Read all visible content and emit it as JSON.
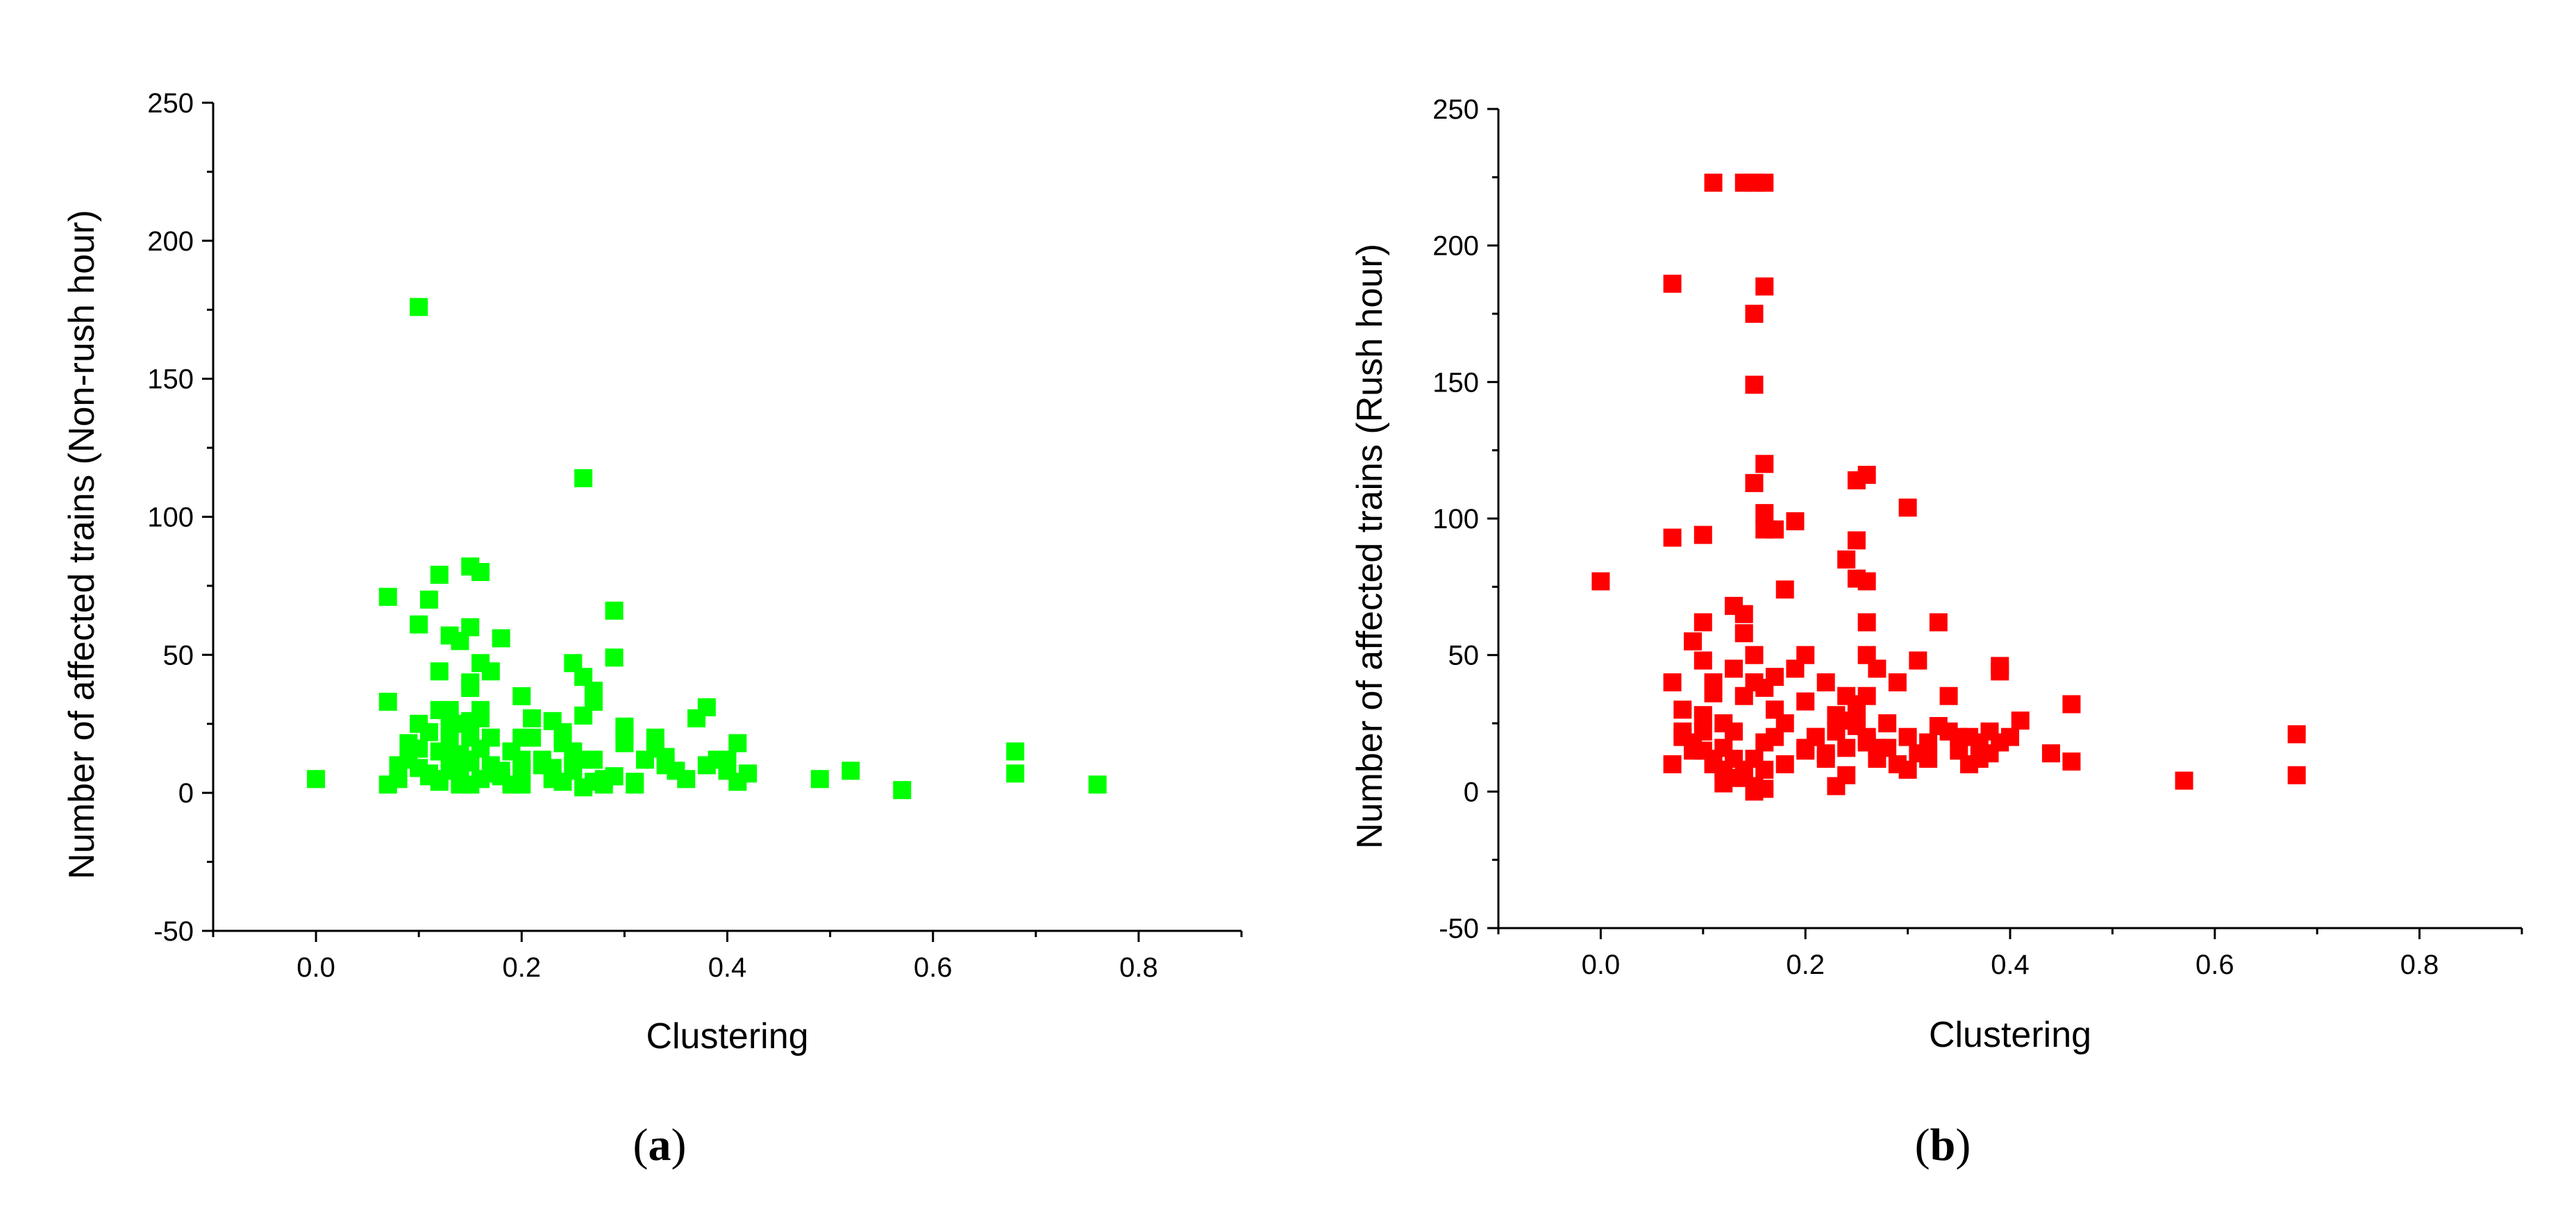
{
  "panels": [
    {
      "label_open": "(",
      "label_letter": "a",
      "label_close": ")"
    },
    {
      "label_open": "(",
      "label_letter": "b",
      "label_close": ")"
    }
  ],
  "chart_data": [
    {
      "type": "scatter",
      "title": "",
      "xlabel": "Clustering",
      "ylabel": "Number of affected trains (Non-rush hour)",
      "xlim": [
        -0.1,
        0.9
      ],
      "ylim": [
        -50,
        250
      ],
      "xticks": [
        0.0,
        0.2,
        0.4,
        0.6,
        0.8
      ],
      "xtick_labels": [
        "0.0",
        "0.2",
        "0.4",
        "0.6",
        "0.8"
      ],
      "yticks": [
        -50,
        0,
        50,
        100,
        150,
        200,
        250
      ],
      "ytick_labels": [
        "-50",
        "0",
        "50",
        "100",
        "150",
        "200",
        "250"
      ],
      "grid": false,
      "marker": "square",
      "color": "#00ff00",
      "series": [
        {
          "x": [
            0.0,
            0.07,
            0.07,
            0.07,
            0.09,
            0.1,
            0.1,
            0.11,
            0.11,
            0.12,
            0.12,
            0.13,
            0.13,
            0.13,
            0.14,
            0.14,
            0.14,
            0.15,
            0.15,
            0.15,
            0.15,
            0.16,
            0.16,
            0.16,
            0.17,
            0.17,
            0.18,
            0.2,
            0.2,
            0.21,
            0.22,
            0.23,
            0.24,
            0.25,
            0.25,
            0.26,
            0.26,
            0.27,
            0.28,
            0.29,
            0.29,
            0.3,
            0.31,
            0.33,
            0.34,
            0.37,
            0.38,
            0.4,
            0.41,
            0.42,
            0.49,
            0.52,
            0.57,
            0.68,
            0.68,
            0.76,
            0.08,
            0.09,
            0.1,
            0.11,
            0.12,
            0.13,
            0.14,
            0.15,
            0.16,
            0.17,
            0.19,
            0.21,
            0.23,
            0.24,
            0.26,
            0.27,
            0.3,
            0.32,
            0.35,
            0.39,
            0.41,
            0.08,
            0.1,
            0.12,
            0.13,
            0.14,
            0.15,
            0.16,
            0.18,
            0.2,
            0.22,
            0.24,
            0.25,
            0.26,
            0.28,
            0.29,
            0.31,
            0.33,
            0.36,
            0.4,
            0.11,
            0.12,
            0.13,
            0.14,
            0.15,
            0.16,
            0.17,
            0.19,
            0.23,
            0.25,
            0.26,
            0.27,
            0.3,
            0.34,
            0.38,
            0.1,
            0.12,
            0.13,
            0.14,
            0.15,
            0.16,
            0.2,
            0.24,
            0.27,
            0.29,
            0.15,
            0.18,
            0.2
          ],
          "y": [
            5,
            71,
            33,
            3,
            18,
            176,
            61,
            70,
            6,
            79,
            44,
            57,
            30,
            12,
            55,
            25,
            8,
            82,
            60,
            38,
            20,
            80,
            47,
            27,
            44,
            10,
            56,
            35,
            20,
            27,
            12,
            26,
            22,
            47,
            15,
            114,
            42,
            37,
            5,
            66,
            49,
            24,
            3,
            20,
            10,
            27,
            31,
            8,
            18,
            7,
            5,
            8,
            1,
            15,
            7,
            3,
            10,
            12,
            25,
            22,
            15,
            23,
            14,
            26,
            30,
            7,
            15,
            20,
            9,
            18,
            28,
            12,
            18,
            12,
            8,
            12,
            4,
            5,
            9,
            4,
            18,
            7,
            3,
            16,
            6,
            8,
            10,
            4,
            8,
            12,
            3,
            6,
            4,
            16,
            5,
            12,
            7,
            5,
            8,
            3,
            11,
            5,
            20,
            3,
            5,
            10,
            2,
            4,
            22,
            13,
            10,
            16,
            30,
            28,
            9,
            40,
            16,
            12,
            21,
            33,
            6,
            12,
            8,
            3
          ]
        }
      ]
    },
    {
      "type": "scatter",
      "title": "",
      "xlabel": "Clustering",
      "ylabel": "Number of affected trains (Rush hour)",
      "xlim": [
        -0.1,
        0.9
      ],
      "ylim": [
        -50,
        250
      ],
      "xticks": [
        0.0,
        0.2,
        0.4,
        0.6,
        0.8
      ],
      "xtick_labels": [
        "0.0",
        "0.2",
        "0.4",
        "0.6",
        "0.8"
      ],
      "yticks": [
        -50,
        0,
        50,
        100,
        150,
        200,
        250
      ],
      "ytick_labels": [
        "-50",
        "0",
        "50",
        "100",
        "150",
        "200",
        "250"
      ],
      "grid": false,
      "marker": "square",
      "color": "#ff0000",
      "series": [
        {
          "x": [
            0.0,
            0.07,
            0.07,
            0.1,
            0.11,
            0.14,
            0.15,
            0.16,
            0.15,
            0.16,
            0.15,
            0.15,
            0.16,
            0.16,
            0.16,
            0.17,
            0.18,
            0.19,
            0.25,
            0.26,
            0.3,
            0.24,
            0.25,
            0.26,
            0.25,
            0.26,
            0.33,
            0.39,
            0.39,
            0.46,
            0.44,
            0.46,
            0.57,
            0.68,
            0.68,
            0.07,
            0.08,
            0.09,
            0.1,
            0.1,
            0.11,
            0.12,
            0.13,
            0.13,
            0.14,
            0.14,
            0.15,
            0.15,
            0.16,
            0.17,
            0.18,
            0.19,
            0.2,
            0.2,
            0.21,
            0.22,
            0.23,
            0.24,
            0.25,
            0.26,
            0.27,
            0.28,
            0.29,
            0.3,
            0.31,
            0.32,
            0.33,
            0.34,
            0.35,
            0.36,
            0.37,
            0.38,
            0.39,
            0.4,
            0.41,
            0.07,
            0.08,
            0.09,
            0.1,
            0.11,
            0.12,
            0.13,
            0.14,
            0.15,
            0.16,
            0.17,
            0.18,
            0.2,
            0.21,
            0.22,
            0.23,
            0.24,
            0.25,
            0.26,
            0.27,
            0.28,
            0.3,
            0.32,
            0.34,
            0.36,
            0.38,
            0.08,
            0.09,
            0.1,
            0.11,
            0.12,
            0.13,
            0.14,
            0.15,
            0.16,
            0.17,
            0.2,
            0.22,
            0.24,
            0.25,
            0.26,
            0.27,
            0.29,
            0.31,
            0.35,
            0.37,
            0.24,
            0.15,
            0.16,
            0.13,
            0.12,
            0.25,
            0.26,
            0.23,
            0.1,
            0.14,
            0.17,
            0.11
          ],
          "y": [
            77,
            186,
            93,
            94,
            223,
            223,
            223,
            223,
            175,
            185,
            149,
            113,
            120,
            102,
            96,
            96,
            74,
            99,
            114,
            116,
            104,
            85,
            78,
            77,
            92,
            62,
            62,
            46,
            44,
            32,
            14,
            11,
            4,
            21,
            6,
            40,
            30,
            55,
            62,
            22,
            40,
            25,
            68,
            45,
            35,
            65,
            50,
            40,
            38,
            30,
            25,
            45,
            50,
            33,
            20,
            40,
            28,
            35,
            30,
            50,
            45,
            25,
            40,
            20,
            48,
            18,
            24,
            35,
            15,
            20,
            12,
            22,
            18,
            20,
            26,
            10,
            20,
            15,
            28,
            12,
            16,
            22,
            8,
            12,
            18,
            30,
            10,
            16,
            20,
            14,
            22,
            26,
            32,
            18,
            12,
            16,
            8,
            12,
            22,
            10,
            14,
            22,
            18,
            15,
            10,
            8,
            12,
            5,
            2,
            8,
            20,
            15,
            12,
            16,
            24,
            20,
            16,
            10,
            14,
            20,
            18,
            6,
            0,
            1,
            5,
            3,
            25,
            35,
            2,
            48,
            58,
            42,
            36
          ]
        }
      ]
    }
  ]
}
